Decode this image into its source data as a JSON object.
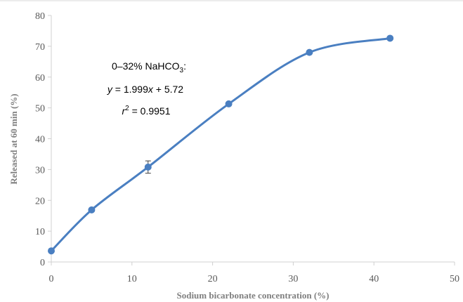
{
  "chart_data": {
    "type": "line",
    "xlabel": "Sodium bicarbonate concentration (%)",
    "ylabel": "Released at 60 min (%)",
    "xlim": [
      0,
      50
    ],
    "ylim": [
      0,
      80
    ],
    "x_ticks": [
      0,
      10,
      20,
      30,
      40,
      50
    ],
    "y_ticks": [
      0,
      10,
      20,
      30,
      40,
      50,
      60,
      70,
      80
    ],
    "grid": false,
    "smooth": true,
    "series": [
      {
        "x": [
          0,
          5,
          12,
          22,
          32,
          42
        ],
        "y": [
          3.6,
          16.9,
          30.8,
          51.3,
          68.0,
          72.6
        ],
        "error": [
          0,
          0,
          2.0,
          0,
          0,
          0
        ],
        "color": "#4a7fc1"
      }
    ],
    "annotation": {
      "line1_prefix": "0–32% NaHCO",
      "line1_sub": "3",
      "line1_suffix": ":",
      "line2_y": "y",
      "line2_mid": " = 1.999",
      "line2_x": "x",
      "line2_rest": " + 5.72",
      "line3_r": "r",
      "line3_sup": "2",
      "line3_rest": " = 0.9951"
    }
  }
}
